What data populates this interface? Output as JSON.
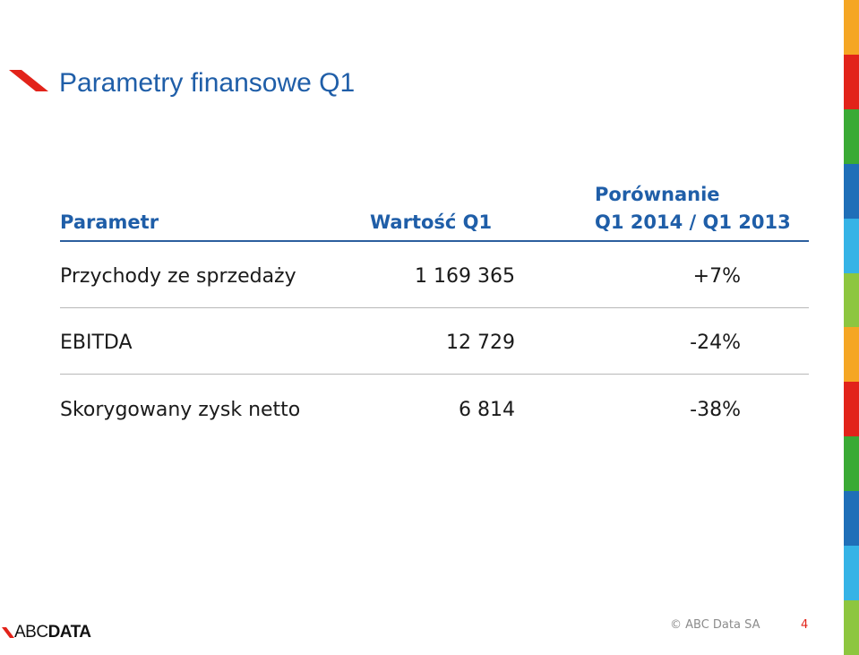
{
  "slide": {
    "title": "Parametry finansowe Q1"
  },
  "table": {
    "headers": {
      "parameter": "Parametr",
      "value": "Wartość Q1",
      "comparison_line1": "Porównanie",
      "comparison_line2": "Q1 2014 / Q1 2013"
    },
    "rows": [
      {
        "name": "Przychody ze sprzedaży",
        "value": "1 169 365",
        "comparison": "+7%"
      },
      {
        "name": "EBITDA",
        "value": "12 729",
        "comparison": "-24%"
      },
      {
        "name": "Skorygowany zysk netto",
        "value": "6 814",
        "comparison": "-38%"
      }
    ]
  },
  "footer": {
    "logo_text_light": "ABC",
    "logo_text_bold": "DATA",
    "copyright": "© ABC Data SA",
    "page_number": "4"
  },
  "colors": {
    "accent_blue": "#1f5ea8",
    "accent_red": "#e2231a",
    "side_stripe": [
      "#f5a623",
      "#e2231a",
      "#3aaa35",
      "#1f6fb8",
      "#35b3e6",
      "#8dc63f",
      "#f5a623",
      "#e2231a",
      "#3aaa35",
      "#1f6fb8",
      "#35b3e6",
      "#8dc63f"
    ]
  }
}
